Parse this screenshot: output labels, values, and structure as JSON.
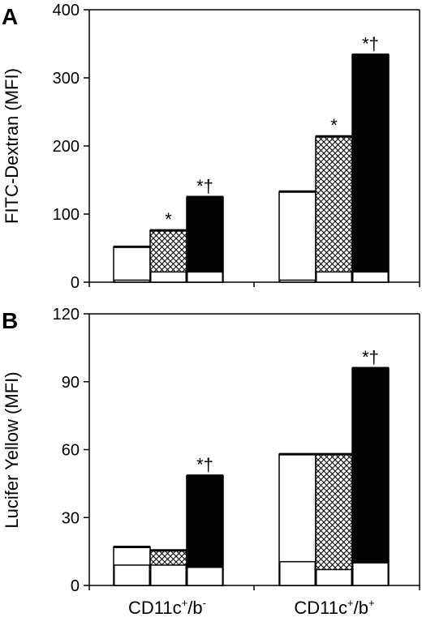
{
  "chart_data": [
    {
      "type": "bar",
      "panel_label": "A",
      "ylabel": "FITC-Dextran (MFI)",
      "ylim": [
        0,
        400
      ],
      "yticks": [
        "0",
        "100",
        "200",
        "300",
        "400"
      ],
      "categories": [
        {
          "main": "CD11c",
          "sup1": "+",
          "mid": "/b",
          "sup2": "-"
        },
        {
          "main": "CD11c",
          "sup1": "+",
          "mid": "/b",
          "sup2": "+"
        }
      ],
      "series": [
        {
          "fill": "white",
          "values": [
            52,
            133
          ],
          "baseline": [
            3,
            3
          ],
          "marks": [
            "",
            ""
          ]
        },
        {
          "fill": "crosshatch",
          "values": [
            76,
            214
          ],
          "baseline": [
            15,
            15
          ],
          "marks": [
            "*",
            "*"
          ]
        },
        {
          "fill": "black",
          "values": [
            125,
            334
          ],
          "baseline": [
            15,
            15
          ],
          "marks": [
            "*†",
            "*†"
          ]
        }
      ]
    },
    {
      "type": "bar",
      "panel_label": "B",
      "ylabel": "Lucifer Yellow (MFI)",
      "ylim": [
        0,
        120
      ],
      "yticks": [
        "0",
        "30",
        "60",
        "90",
        "120"
      ],
      "categories": [
        {
          "main": "CD11c",
          "sup1": "+",
          "mid": "/b",
          "sup2": "-"
        },
        {
          "main": "CD11c",
          "sup1": "+",
          "mid": "/b",
          "sup2": "+"
        }
      ],
      "series": [
        {
          "fill": "white",
          "values": [
            17,
            58
          ],
          "baseline": [
            9,
            10.5
          ],
          "marks": [
            "",
            ""
          ]
        },
        {
          "fill": "crosshatch",
          "values": [
            15.5,
            58
          ],
          "baseline": [
            9,
            7
          ],
          "marks": [
            "",
            ""
          ]
        },
        {
          "fill": "black",
          "values": [
            48.5,
            96
          ],
          "baseline": [
            8,
            10
          ],
          "marks": [
            "*†",
            "*†"
          ]
        }
      ]
    }
  ]
}
